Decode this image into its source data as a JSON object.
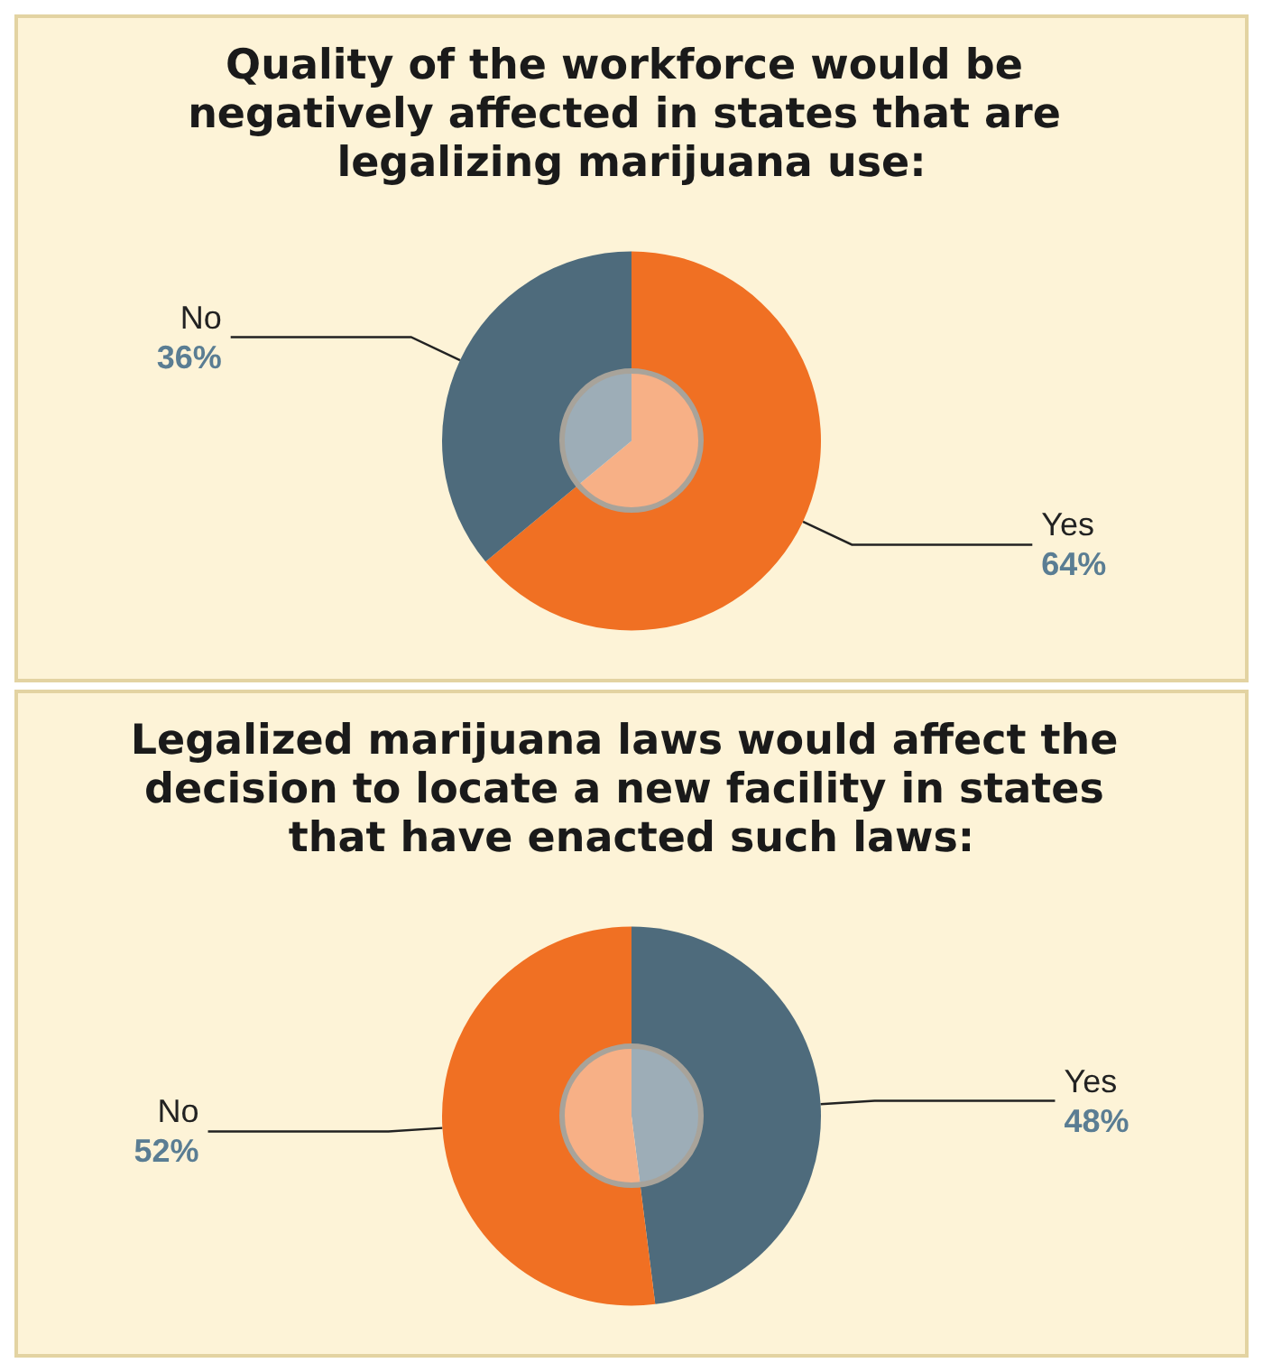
{
  "chart_data": [
    {
      "type": "donut",
      "title": "Quality of the workforce would be negatively affected in states that are legalizing marijuana use:",
      "categories": [
        "Yes",
        "No"
      ],
      "values": [
        64,
        36
      ],
      "value_labels": [
        "64%",
        "36%"
      ],
      "colors": [
        "#f07023",
        "#4e6b7c"
      ]
    },
    {
      "type": "donut",
      "title": "Legalized marijuana laws would affect the decision to locate a new facility in states that have enacted such laws:",
      "categories": [
        "Yes",
        "No"
      ],
      "values": [
        48,
        52
      ],
      "value_labels": [
        "48%",
        "52%"
      ],
      "colors": [
        "#4e6b7c",
        "#f07023"
      ]
    }
  ]
}
